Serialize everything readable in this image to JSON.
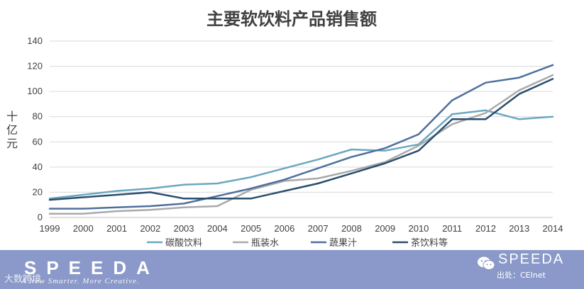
{
  "chart_data": {
    "type": "line",
    "title": "主要软饮料产品销售额",
    "ylabel": "十亿元",
    "xlabel": "",
    "ylim": [
      0,
      140
    ],
    "yticks": [
      0,
      20,
      40,
      60,
      80,
      100,
      120,
      140
    ],
    "grid": true,
    "legend_position": "bottom",
    "categories": [
      "1999",
      "2000",
      "2001",
      "2002",
      "2003",
      "2004",
      "2005",
      "2006",
      "2007",
      "2008",
      "2009",
      "2010",
      "2011",
      "2012",
      "2013",
      "2014"
    ],
    "series": [
      {
        "name": "碳酸饮料",
        "color": "#6aa8c0",
        "values": [
          15,
          18,
          21,
          23,
          26,
          27,
          32,
          39,
          46,
          54,
          53,
          58,
          82,
          85,
          78,
          80
        ]
      },
      {
        "name": "瓶装水",
        "color": "#a9a9a9",
        "values": [
          3,
          3,
          5,
          6,
          8,
          9,
          22,
          29,
          31,
          37,
          44,
          57,
          74,
          83,
          101,
          113
        ]
      },
      {
        "name": "蔬果汁",
        "color": "#4e6f9e",
        "values": [
          7,
          7,
          8,
          9,
          11,
          17,
          23,
          30,
          39,
          48,
          55,
          66,
          93,
          107,
          111,
          121
        ]
      },
      {
        "name": "茶饮料等",
        "color": "#2a4d6e",
        "values": [
          14,
          16,
          18,
          20,
          15,
          15,
          15,
          21,
          27,
          35,
          43,
          53,
          78,
          78,
          98,
          110
        ]
      }
    ]
  },
  "footer": {
    "brand_left": "SPEEDA",
    "tagline": "A New Smarter. More Creative.",
    "watermark": "大数跨境",
    "brand_right": "SPEEDA",
    "source": "出处：CEInet"
  }
}
